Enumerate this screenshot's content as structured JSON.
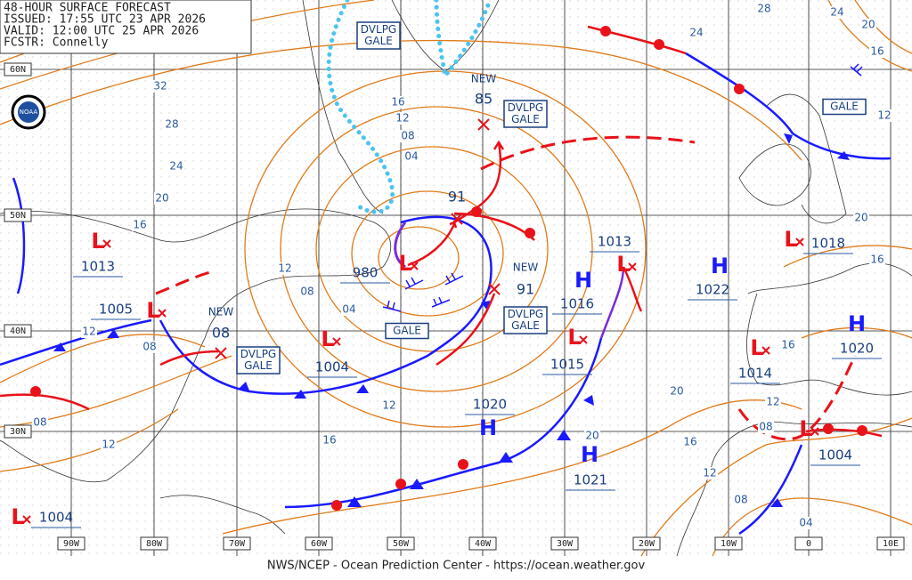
{
  "header": {
    "lines": [
      "48-HOUR SURFACE FORECAST",
      "ISSUED: 17:55 UTC 23 APR 2026",
      "VALID: 12:00 UTC 25 APR 2026",
      "FCSTR: Connelly"
    ]
  },
  "logo": "NOAA",
  "footer": "NWS/NCEP - Ocean Prediction Center - https://ocean.weather.gov",
  "latitude_labels": [
    "60N",
    "50N",
    "40N",
    "30N"
  ],
  "longitude_labels": [
    "90W",
    "80W",
    "70W",
    "60W",
    "50W",
    "40W",
    "30W",
    "20W",
    "10W",
    "0",
    "10E"
  ],
  "centers": [
    {
      "symbol": "L",
      "pressure": "1013"
    },
    {
      "symbol": "L",
      "pressure": "1005"
    },
    {
      "symbol": "L",
      "pressure": "980"
    },
    {
      "symbol": "L",
      "pressure": "1004"
    },
    {
      "symbol": "L",
      "pressure": "1015"
    },
    {
      "symbol": "L",
      "pressure": "1013"
    },
    {
      "symbol": "H",
      "pressure": "1016"
    },
    {
      "symbol": "H",
      "pressure": "1022"
    },
    {
      "symbol": "L",
      "pressure": "1018"
    },
    {
      "symbol": "L",
      "pressure": "1014"
    },
    {
      "symbol": "H",
      "pressure": "1020"
    },
    {
      "symbol": "H",
      "pressure": "1020"
    },
    {
      "symbol": "H",
      "pressure": "1021"
    },
    {
      "symbol": "L",
      "pressure": "1004"
    },
    {
      "symbol": "L",
      "pressure": "1004"
    }
  ],
  "new_systems": [
    {
      "tag": "NEW",
      "pressure": "85"
    },
    {
      "pressure": "91"
    },
    {
      "tag": "NEW",
      "pressure": "91"
    },
    {
      "tag": "NEW",
      "pressure": "08"
    }
  ],
  "warnings": [
    [
      "DVLPG",
      "GALE"
    ],
    [
      "DVLPG",
      "GALE"
    ],
    [
      "DVLPG",
      "GALE"
    ],
    [
      "DVLPG",
      "GALE"
    ],
    [
      "GALE"
    ],
    [
      "GALE"
    ]
  ],
  "isobar_labels": [
    "28",
    "24",
    "20",
    "16",
    "12",
    "24",
    "32",
    "28",
    "24",
    "20",
    "16",
    "16",
    "12",
    "08",
    "04",
    "12",
    "08",
    "04",
    "12",
    "08",
    "08",
    "12",
    "12",
    "16",
    "20",
    "20",
    "16",
    "12",
    "08",
    "04",
    "08",
    "12",
    "16",
    "16",
    "20"
  ]
}
